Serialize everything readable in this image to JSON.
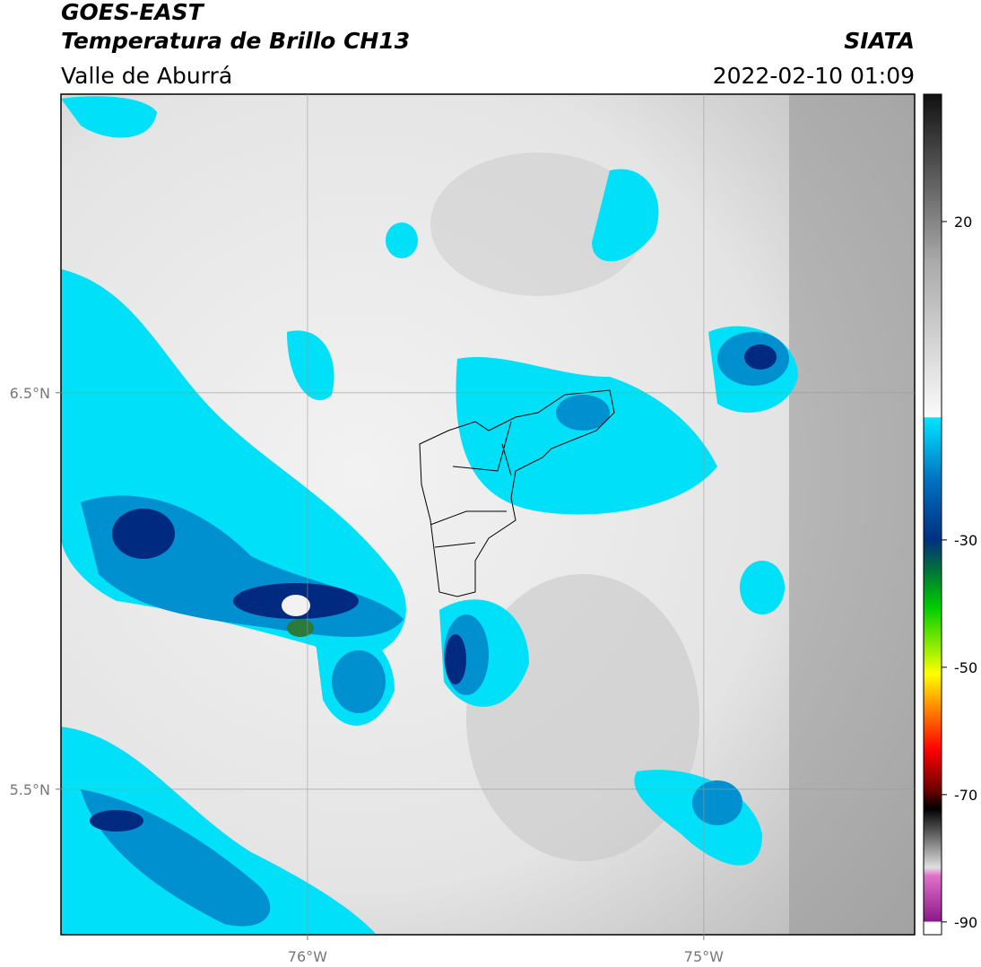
{
  "map_data": {
    "title": "GOES-EAST",
    "subtitle": "Temperatura de Brillo CH13",
    "region": "Valle de Aburrá",
    "source": "SIATA",
    "datetime": "2022-02-10 01:09",
    "xlim": [
      -76.622,
      -74.468
    ],
    "ylim": [
      5.133,
      7.253
    ],
    "xticks": [
      {
        "value": -76,
        "label": "76°W"
      },
      {
        "value": -75,
        "label": "75°W"
      }
    ],
    "yticks": [
      {
        "value": 6.5,
        "label": "6.5°N"
      },
      {
        "value": 5.5,
        "label": "5.5°N"
      }
    ],
    "grid": true,
    "clim": [
      -92,
      40
    ],
    "cticks": [
      20,
      -30,
      -50,
      -70,
      -90
    ]
  }
}
